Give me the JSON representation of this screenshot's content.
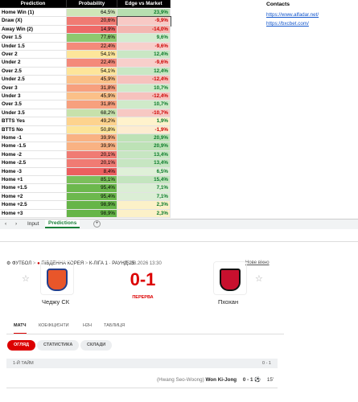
{
  "sheet": {
    "header": [
      "Prediction",
      "Probability",
      "Edge vs Market"
    ],
    "rows": [
      [
        "Home Win (1)",
        "64,5%",
        "23,9%"
      ],
      [
        "Draw (X)",
        "20,6%",
        "-9,9%"
      ],
      [
        "Away Win (2)",
        "14,9%",
        "-14,0%"
      ],
      [
        "Over 1.5",
        "77,6%",
        "9,6%"
      ],
      [
        "Under 1.5",
        "22,4%",
        "-9,6%"
      ],
      [
        "Over 2",
        "54,1%",
        "12,4%"
      ],
      [
        "Under 2",
        "22,4%",
        "-9,6%"
      ],
      [
        "Over 2.5",
        "54,1%",
        "12,4%"
      ],
      [
        "Under 2.5",
        "45,9%",
        "-12,4%"
      ],
      [
        "Over 3",
        "31,8%",
        "10,7%"
      ],
      [
        "Under 3",
        "45,9%",
        "-12,4%"
      ],
      [
        "Over 3.5",
        "31,8%",
        "10,7%"
      ],
      [
        "Under 3.5",
        "68,2%",
        "-10,7%"
      ],
      [
        "BTTS Yes",
        "49,2%",
        "1,9%"
      ],
      [
        "BTTS No",
        "50,8%",
        "-1,9%"
      ],
      [
        "Home -1",
        "39,9%",
        "20,9%"
      ],
      [
        "Home -1.5",
        "39,9%",
        "20,9%"
      ],
      [
        "Home -2",
        "20,1%",
        "13,4%"
      ],
      [
        "Home -2.5",
        "20,1%",
        "13,4%"
      ],
      [
        "Home -3",
        "8,4%",
        "6,5%"
      ],
      [
        "Home +1",
        "85,1%",
        "15,4%"
      ],
      [
        "Home +1.5",
        "95,4%",
        "7,1%"
      ],
      [
        "Home +2",
        "95,4%",
        "7,1%"
      ],
      [
        "Home +2.5",
        "98,9%",
        "2,3%"
      ],
      [
        "Home +3",
        "98,9%",
        "2,3%"
      ]
    ],
    "contacts": {
      "title": "Contacts",
      "links": [
        "https://www.alfadar.net/",
        "https://bxcbet.com/"
      ]
    },
    "tabs": [
      "Input",
      "Predictions"
    ]
  },
  "match": {
    "breadcrumb": [
      "ФУТБОЛ",
      "ПІВДЕННА КОРЕЯ",
      "К-ЛІГА 1 · РАУНД 25"
    ],
    "new_window": "Нове вікно",
    "home": "Чеджу СК",
    "away": "Пхохан",
    "datetime": "25.08.2026 13:30",
    "score": "0-1",
    "status": "ПЕРЕРВА",
    "tabs": [
      "МАТЧ",
      "КОЕФІЦІЄНТИ",
      "H2H",
      "ТАБЛИЦЯ"
    ],
    "subtabs": [
      "ОГЛЯД",
      "СТАТИСТИКА",
      "СКЛАДИ"
    ],
    "period": {
      "name": "1-Й ТАЙМ",
      "score": "0 - 1"
    },
    "event": {
      "assist": "(Hwang Seo-Woong)",
      "player": "Won Ki-Jong",
      "score": "0 - 1",
      "minute": "15'"
    }
  }
}
